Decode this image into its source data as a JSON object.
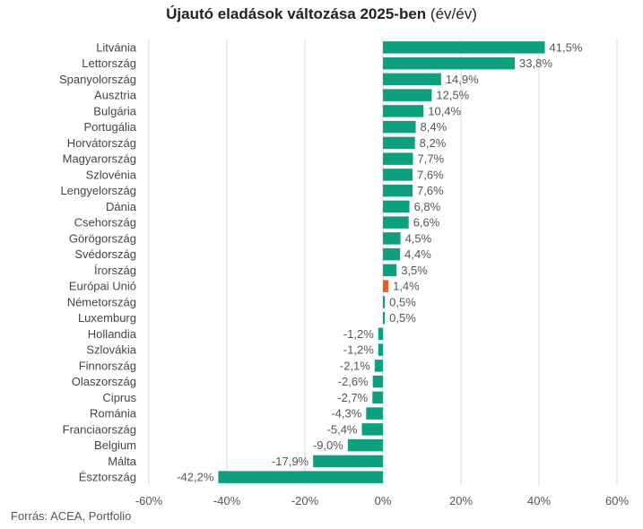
{
  "chart_data": {
    "type": "bar",
    "orientation": "horizontal",
    "title": "Újautó eladások változása 2025-ben",
    "title_suffix": "(év/év)",
    "categories": [
      "Litvánia",
      "Lettország",
      "Spanyolország",
      "Ausztria",
      "Bulgária",
      "Portugália",
      "Horvátország",
      "Magyarország",
      "Szlovénia",
      "Lengyelország",
      "Dánia",
      "Csehország",
      "Görögország",
      "Svédország",
      "Írország",
      "Európai Unió",
      "Németország",
      "Luxemburg",
      "Hollandia",
      "Szlovákia",
      "Finnország",
      "Olaszország",
      "Ciprus",
      "Románia",
      "Franciaország",
      "Belgium",
      "Málta",
      "Észtország"
    ],
    "values": [
      41.5,
      33.8,
      14.9,
      12.5,
      10.4,
      8.4,
      8.2,
      7.7,
      7.6,
      7.6,
      6.8,
      6.6,
      4.5,
      4.4,
      3.5,
      1.4,
      0.5,
      0.5,
      -1.2,
      -1.2,
      -2.1,
      -2.6,
      -2.7,
      -4.3,
      -5.4,
      -9.0,
      -17.9,
      -42.2
    ],
    "value_labels": [
      "41,5%",
      "33,8%",
      "14,9%",
      "12,5%",
      "10,4%",
      "8,4%",
      "8,2%",
      "7,7%",
      "7,6%",
      "7,6%",
      "6,8%",
      "6,6%",
      "4,5%",
      "4,4%",
      "3,5%",
      "1,4%",
      "0,5%",
      "0,5%",
      "-1,2%",
      "-1,2%",
      "-2,1%",
      "-2,6%",
      "-2,7%",
      "-4,3%",
      "-5,4%",
      "-9,0%",
      "-17,9%",
      "-42,2%"
    ],
    "highlight_category": "Európai Unió",
    "xlim": [
      -60,
      60
    ],
    "xticks": [
      -60,
      -40,
      -20,
      0,
      20,
      40,
      60
    ],
    "xtick_labels": [
      "-60%",
      "-40%",
      "-20%",
      "0%",
      "20%",
      "40%",
      "60%"
    ],
    "grid": "vertical",
    "colors": {
      "bar": "#0e9f7e",
      "highlight": "#ec5a23",
      "grid": "#d9d9d9",
      "axis_text": "#555555"
    }
  },
  "source": "Forrás: ACEA, Portfolio"
}
